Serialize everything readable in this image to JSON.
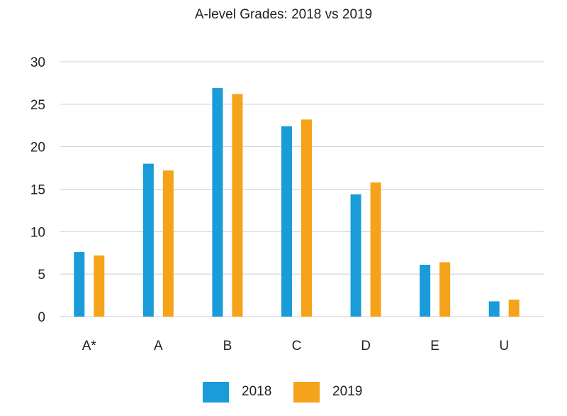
{
  "chart_data": {
    "type": "bar",
    "title": "A-level Grades: 2018 vs 2019",
    "categories": [
      "A*",
      "A",
      "B",
      "C",
      "D",
      "E",
      "U"
    ],
    "series": [
      {
        "name": "2018",
        "color": "#1a9cd8",
        "values": [
          7.6,
          18.0,
          26.9,
          22.4,
          14.4,
          6.1,
          1.8
        ]
      },
      {
        "name": "2019",
        "color": "#f5a31a",
        "values": [
          7.2,
          17.2,
          26.2,
          23.2,
          15.8,
          6.4,
          2.0
        ]
      }
    ],
    "ylim": [
      0,
      30
    ],
    "yticks": [
      0,
      5,
      10,
      15,
      20,
      25,
      30
    ],
    "grid": true,
    "legend": "bottom-center",
    "xlabel": "",
    "ylabel": ""
  }
}
